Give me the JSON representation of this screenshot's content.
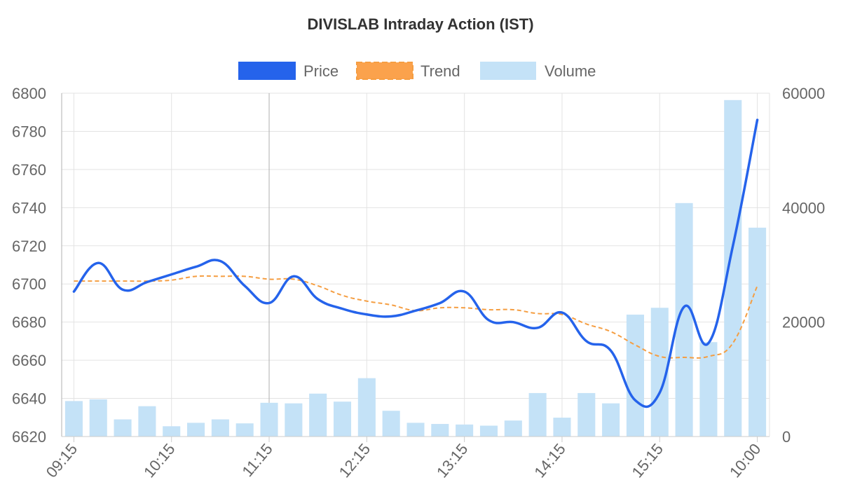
{
  "chart_data": {
    "type": "bar-line",
    "title": "DIVISLAB Intraday Action (IST)",
    "legend": {
      "placement": "top-center",
      "items": [
        "Price",
        "Trend",
        "Volume"
      ]
    },
    "x_tick_labels": [
      "09:15",
      "10:15",
      "11:15",
      "12:15",
      "13:15",
      "14:15",
      "15:15",
      "10:00"
    ],
    "x_tick_positions": [
      0,
      4,
      8,
      12,
      16,
      20,
      24,
      28
    ],
    "y_left": {
      "min": 6620,
      "max": 6800,
      "ticks": [
        6620,
        6640,
        6660,
        6680,
        6700,
        6720,
        6740,
        6760,
        6780,
        6800
      ]
    },
    "y_right": {
      "min": 0,
      "max": 60000,
      "ticks": [
        0,
        20000,
        40000,
        60000
      ]
    },
    "grid": true,
    "series": [
      {
        "name": "Price",
        "kind": "line",
        "axis": "left",
        "color": "#2563eb",
        "values": [
          6696,
          6711,
          6697,
          6701,
          6705,
          6709,
          6712,
          6699,
          6690,
          6704,
          6692,
          6687,
          6684,
          6683,
          6686,
          6690,
          6696,
          6681,
          6680,
          6677,
          6685,
          6670,
          6665,
          6639,
          6643,
          6688,
          6669,
          6720,
          6786
        ]
      },
      {
        "name": "Trend",
        "kind": "line",
        "axis": "left",
        "style": "dashed",
        "color": "#f59e42",
        "values": [
          6701.5,
          6701.5,
          6701.5,
          6701.5,
          6702,
          6704,
          6704,
          6704,
          6702.5,
          6702.5,
          6699,
          6694,
          6691,
          6689,
          6686,
          6687.5,
          6687.5,
          6686.5,
          6686.5,
          6684.5,
          6684,
          6679,
          6675,
          6668,
          6662,
          6661.5,
          6662,
          6669,
          6699
        ]
      },
      {
        "name": "Volume",
        "kind": "bar",
        "axis": "right",
        "color": "#c4e2f7",
        "values": [
          6200,
          6500,
          3000,
          5300,
          1800,
          2400,
          3000,
          2300,
          5900,
          5800,
          7500,
          6100,
          10200,
          4500,
          2400,
          2200,
          2100,
          1900,
          2800,
          7600,
          3300,
          7600,
          5800,
          21300,
          22500,
          40800,
          16500,
          58800,
          36500
        ]
      }
    ]
  }
}
